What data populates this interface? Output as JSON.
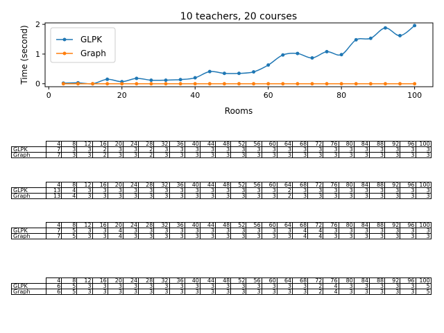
{
  "chart_data": {
    "type": "line",
    "title": "10 teachers, 20 courses",
    "xlabel": "Rooms",
    "ylabel": "Time (second)",
    "xlim": [
      -1,
      105
    ],
    "ylim": [
      -0.1,
      2.05
    ],
    "xticks": [
      0,
      20,
      40,
      60,
      80,
      100
    ],
    "yticks": [
      0,
      1,
      2
    ],
    "legend": "top-left",
    "grid": false,
    "x": [
      4,
      8,
      12,
      16,
      20,
      24,
      28,
      32,
      36,
      40,
      44,
      48,
      52,
      56,
      60,
      64,
      68,
      72,
      76,
      80,
      84,
      88,
      92,
      96,
      100
    ],
    "series": [
      {
        "name": "GLPK",
        "color": "#1f77b4",
        "marker": "circle",
        "values": [
          0.02,
          0.03,
          0.0,
          0.15,
          0.07,
          0.18,
          0.12,
          0.12,
          0.14,
          0.2,
          0.41,
          0.35,
          0.35,
          0.4,
          0.63,
          0.97,
          1.02,
          0.87,
          1.08,
          0.98,
          1.48,
          1.53,
          1.88,
          1.62,
          1.96
        ]
      },
      {
        "name": "Graph",
        "color": "#ff7f0e",
        "marker": "circle",
        "values": [
          0.0,
          0.0,
          0.0,
          0.0,
          0.0,
          0.0,
          0.0,
          0.0,
          0.0,
          0.0,
          0.0,
          0.0,
          0.0,
          0.0,
          0.0,
          0.0,
          0.0,
          0.0,
          0.0,
          0.0,
          0.0,
          0.0,
          0.0,
          0.0,
          0.0
        ]
      }
    ]
  },
  "tables": [
    {
      "headers": [
        "4",
        "8",
        "12",
        "16",
        "20",
        "24",
        "28",
        "32",
        "36",
        "40",
        "44",
        "48",
        "52",
        "56",
        "60",
        "64",
        "68",
        "72",
        "76",
        "80",
        "84",
        "88",
        "92",
        "96",
        "100"
      ],
      "rows": [
        {
          "label": "GLPK",
          "values": [
            "7",
            "3",
            "3",
            "2",
            "3",
            "3",
            "2",
            "3",
            "3",
            "3",
            "3",
            "3",
            "3",
            "3",
            "3",
            "3",
            "3",
            "3",
            "3",
            "3",
            "3",
            "3",
            "3",
            "3",
            "3"
          ]
        },
        {
          "label": "Graph",
          "values": [
            "7",
            "3",
            "3",
            "2",
            "3",
            "3",
            "2",
            "3",
            "3",
            "3",
            "3",
            "3",
            "3",
            "3",
            "3",
            "3",
            "3",
            "3",
            "3",
            "3",
            "3",
            "3",
            "3",
            "3",
            "3"
          ]
        }
      ]
    },
    {
      "headers": [
        "4",
        "8",
        "12",
        "16",
        "20",
        "24",
        "28",
        "32",
        "36",
        "40",
        "44",
        "48",
        "52",
        "56",
        "60",
        "64",
        "68",
        "72",
        "76",
        "80",
        "84",
        "88",
        "92",
        "96",
        "100"
      ],
      "rows": [
        {
          "label": "GLPK",
          "values": [
            "13",
            "4",
            "3",
            "3",
            "3",
            "3",
            "3",
            "3",
            "3",
            "3",
            "3",
            "3",
            "3",
            "3",
            "3",
            "2",
            "3",
            "3",
            "3",
            "3",
            "3",
            "3",
            "3",
            "3",
            "3"
          ]
        },
        {
          "label": "Graph",
          "values": [
            "13",
            "4",
            "3",
            "3",
            "3",
            "3",
            "3",
            "3",
            "3",
            "3",
            "3",
            "3",
            "3",
            "3",
            "3",
            "2",
            "3",
            "3",
            "3",
            "3",
            "3",
            "3",
            "3",
            "3",
            "3"
          ]
        }
      ]
    },
    {
      "headers": [
        "4",
        "8",
        "12",
        "16",
        "20",
        "24",
        "28",
        "32",
        "36",
        "40",
        "44",
        "48",
        "52",
        "56",
        "60",
        "64",
        "68",
        "72",
        "76",
        "80",
        "84",
        "88",
        "92",
        "96",
        "100"
      ],
      "rows": [
        {
          "label": "GLPK",
          "values": [
            "7",
            "5",
            "3",
            "3",
            "4",
            "3",
            "3",
            "3",
            "3",
            "3",
            "3",
            "3",
            "3",
            "3",
            "3",
            "3",
            "4",
            "4",
            "3",
            "3",
            "3",
            "3",
            "3",
            "3",
            "3"
          ]
        },
        {
          "label": "Graph",
          "values": [
            "7",
            "5",
            "3",
            "3",
            "4",
            "3",
            "3",
            "3",
            "3",
            "3",
            "3",
            "3",
            "3",
            "3",
            "3",
            "3",
            "4",
            "4",
            "3",
            "3",
            "3",
            "3",
            "3",
            "3",
            "3"
          ]
        }
      ]
    },
    {
      "headers": [
        "4",
        "8",
        "12",
        "16",
        "20",
        "24",
        "28",
        "32",
        "36",
        "40",
        "44",
        "48",
        "52",
        "56",
        "60",
        "64",
        "68",
        "72",
        "76",
        "80",
        "84",
        "88",
        "92",
        "96",
        "100"
      ],
      "rows": [
        {
          "label": "GLPK",
          "values": [
            "6",
            "5",
            "3",
            "3",
            "3",
            "3",
            "3",
            "3",
            "3",
            "3",
            "3",
            "3",
            "3",
            "3",
            "3",
            "3",
            "3",
            "2",
            "4",
            "3",
            "3",
            "3",
            "3",
            "3",
            "5"
          ]
        },
        {
          "label": "Graph",
          "values": [
            "6",
            "5",
            "3",
            "3",
            "3",
            "3",
            "3",
            "3",
            "3",
            "3",
            "3",
            "3",
            "3",
            "3",
            "3",
            "3",
            "3",
            "2",
            "4",
            "3",
            "3",
            "3",
            "3",
            "3",
            "5"
          ]
        }
      ]
    }
  ]
}
